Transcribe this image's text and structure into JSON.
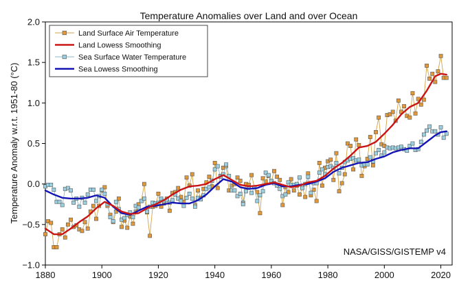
{
  "chart_data": {
    "type": "line",
    "title": "Temperature Anomalies over Land and over Ocean",
    "xlabel": "",
    "ylabel": "Temperature Anomaly w.r.t. 1951-80 (°C)",
    "xlim": [
      1880,
      2024
    ],
    "ylim": [
      -1.0,
      2.0
    ],
    "x_ticks": [
      "1880",
      "1900",
      "1920",
      "1940",
      "1960",
      "1980",
      "2000",
      "2020"
    ],
    "y_ticks": [
      "−1.0",
      "−0.5",
      "0.0",
      "0.5",
      "1.0",
      "1.5",
      "2.0"
    ],
    "annotation": "NASA/GISS/GISTEMP v4",
    "legend_position": "top-left",
    "grid": false,
    "series": [
      {
        "name": "Land Surface Air Temperature",
        "kind": "markers",
        "color": "#d4a244",
        "marker_fill": "#e0983a",
        "x": [
          1880,
          1881,
          1882,
          1883,
          1884,
          1885,
          1886,
          1887,
          1888,
          1889,
          1890,
          1891,
          1892,
          1893,
          1894,
          1895,
          1896,
          1897,
          1898,
          1899,
          1900,
          1901,
          1902,
          1903,
          1904,
          1905,
          1906,
          1907,
          1908,
          1909,
          1910,
          1911,
          1912,
          1913,
          1914,
          1915,
          1916,
          1917,
          1918,
          1919,
          1920,
          1921,
          1922,
          1923,
          1924,
          1925,
          1926,
          1927,
          1928,
          1929,
          1930,
          1931,
          1932,
          1933,
          1934,
          1935,
          1936,
          1937,
          1938,
          1939,
          1940,
          1941,
          1942,
          1943,
          1944,
          1945,
          1946,
          1947,
          1948,
          1949,
          1950,
          1951,
          1952,
          1953,
          1954,
          1955,
          1956,
          1957,
          1958,
          1959,
          1960,
          1961,
          1962,
          1963,
          1964,
          1965,
          1966,
          1967,
          1968,
          1969,
          1970,
          1971,
          1972,
          1973,
          1974,
          1975,
          1976,
          1977,
          1978,
          1979,
          1980,
          1981,
          1982,
          1983,
          1984,
          1985,
          1986,
          1987,
          1988,
          1989,
          1990,
          1991,
          1992,
          1993,
          1994,
          1995,
          1996,
          1997,
          1998,
          1999,
          2000,
          2001,
          2002,
          2003,
          2004,
          2005,
          2006,
          2007,
          2008,
          2009,
          2010,
          2011,
          2012,
          2013,
          2014,
          2015,
          2016,
          2017,
          2018,
          2019,
          2020,
          2021,
          2022
        ],
        "y": [
          -0.62,
          -0.46,
          -0.48,
          -0.78,
          -0.78,
          -0.62,
          -0.56,
          -0.66,
          -0.5,
          -0.44,
          -0.53,
          -0.51,
          -0.56,
          -0.58,
          -0.47,
          -0.55,
          -0.34,
          -0.27,
          -0.43,
          -0.27,
          -0.08,
          -0.04,
          -0.27,
          -0.38,
          -0.47,
          -0.34,
          -0.18,
          -0.53,
          -0.45,
          -0.54,
          -0.4,
          -0.49,
          -0.34,
          -0.25,
          -0.21,
          0.0,
          -0.35,
          -0.64,
          -0.28,
          -0.27,
          -0.12,
          -0.28,
          -0.24,
          -0.18,
          -0.33,
          -0.11,
          -0.1,
          -0.05,
          -0.16,
          -0.22,
          0.08,
          -0.02,
          0.12,
          -0.26,
          -0.08,
          -0.17,
          -0.06,
          0.02,
          0.09,
          -0.03,
          0.26,
          -0.05,
          0.1,
          0.2,
          0.22,
          -0.08,
          -0.02,
          0.0,
          0.08,
          0.04,
          -0.23,
          0.0,
          -0.01,
          0.11,
          -0.04,
          -0.1,
          -0.36,
          0.07,
          0.03,
          0.1,
          0.03,
          0.16,
          0.09,
          0.05,
          -0.26,
          -0.04,
          -0.1,
          0.06,
          -0.08,
          -0.02,
          -0.13,
          -0.05,
          -0.16,
          0.13,
          -0.14,
          -0.07,
          -0.21,
          0.26,
          -0.02,
          0.2,
          0.28,
          0.3,
          0.05,
          0.38,
          -0.09,
          0.01,
          0.12,
          0.5,
          0.47,
          0.18,
          0.55,
          0.48,
          0.1,
          0.22,
          0.31,
          0.58,
          0.23,
          0.64,
          0.82,
          0.49,
          0.47,
          0.85,
          0.86,
          0.89,
          0.78,
          1.03,
          0.89,
          0.96,
          0.84,
          0.82,
          1.12,
          0.87,
          1.05,
          0.98,
          1.04,
          1.46,
          1.3,
          1.36,
          1.26,
          1.39,
          1.58,
          1.31,
          1.31
        ]
      },
      {
        "name": "Land Lowess Smoothing",
        "kind": "line",
        "color": "#c81414",
        "x": [
          1880,
          1883,
          1886,
          1889,
          1892,
          1895,
          1898,
          1901,
          1904,
          1907,
          1910,
          1913,
          1916,
          1919,
          1922,
          1925,
          1928,
          1931,
          1934,
          1937,
          1940,
          1943,
          1946,
          1949,
          1952,
          1955,
          1958,
          1961,
          1964,
          1967,
          1970,
          1973,
          1976,
          1979,
          1982,
          1985,
          1988,
          1991,
          1994,
          1997,
          2000,
          2003,
          2006,
          2009,
          2012,
          2015,
          2018,
          2020,
          2022
        ],
        "y": [
          -0.55,
          -0.62,
          -0.62,
          -0.55,
          -0.47,
          -0.4,
          -0.3,
          -0.22,
          -0.27,
          -0.34,
          -0.37,
          -0.36,
          -0.3,
          -0.25,
          -0.2,
          -0.13,
          -0.07,
          -0.03,
          -0.02,
          0.0,
          0.06,
          0.11,
          0.05,
          -0.01,
          -0.03,
          -0.02,
          0.0,
          0.02,
          -0.01,
          -0.04,
          -0.02,
          0.02,
          0.04,
          0.1,
          0.19,
          0.26,
          0.35,
          0.45,
          0.47,
          0.52,
          0.62,
          0.73,
          0.86,
          0.95,
          1.0,
          1.15,
          1.33,
          1.36,
          1.35
        ]
      },
      {
        "name": "Sea Surface Water Temperature",
        "kind": "markers",
        "color": "#8ab8c8",
        "marker_fill": "#9ccfdf",
        "x": [
          1880,
          1881,
          1882,
          1883,
          1884,
          1885,
          1886,
          1887,
          1888,
          1889,
          1890,
          1891,
          1892,
          1893,
          1894,
          1895,
          1896,
          1897,
          1898,
          1899,
          1900,
          1901,
          1902,
          1903,
          1904,
          1905,
          1906,
          1907,
          1908,
          1909,
          1910,
          1911,
          1912,
          1913,
          1914,
          1915,
          1916,
          1917,
          1918,
          1919,
          1920,
          1921,
          1922,
          1923,
          1924,
          1925,
          1926,
          1927,
          1928,
          1929,
          1930,
          1931,
          1932,
          1933,
          1934,
          1935,
          1936,
          1937,
          1938,
          1939,
          1940,
          1941,
          1942,
          1943,
          1944,
          1945,
          1946,
          1947,
          1948,
          1949,
          1950,
          1951,
          1952,
          1953,
          1954,
          1955,
          1956,
          1957,
          1958,
          1959,
          1960,
          1961,
          1962,
          1963,
          1964,
          1965,
          1966,
          1967,
          1968,
          1969,
          1970,
          1971,
          1972,
          1973,
          1974,
          1975,
          1976,
          1977,
          1978,
          1979,
          1980,
          1981,
          1982,
          1983,
          1984,
          1985,
          1986,
          1987,
          1988,
          1989,
          1990,
          1991,
          1992,
          1993,
          1994,
          1995,
          1996,
          1997,
          1998,
          1999,
          2000,
          2001,
          2002,
          2003,
          2004,
          2005,
          2006,
          2007,
          2008,
          2009,
          2010,
          2011,
          2012,
          2013,
          2014,
          2015,
          2016,
          2017,
          2018,
          2019,
          2020,
          2021,
          2022
        ],
        "y": [
          -0.03,
          -0.01,
          -0.01,
          -0.07,
          -0.22,
          -0.22,
          -0.26,
          -0.06,
          -0.05,
          -0.08,
          -0.23,
          -0.18,
          -0.28,
          -0.17,
          -0.23,
          -0.13,
          -0.07,
          -0.07,
          -0.21,
          -0.15,
          -0.07,
          -0.12,
          -0.25,
          -0.41,
          -0.46,
          -0.22,
          -0.31,
          -0.44,
          -0.42,
          -0.38,
          -0.35,
          -0.41,
          -0.27,
          -0.29,
          -0.21,
          -0.18,
          -0.34,
          -0.28,
          -0.23,
          -0.24,
          -0.23,
          -0.18,
          -0.21,
          -0.2,
          -0.23,
          -0.2,
          -0.13,
          -0.18,
          -0.21,
          -0.27,
          -0.17,
          -0.12,
          -0.18,
          -0.28,
          -0.17,
          -0.19,
          -0.14,
          -0.06,
          -0.04,
          0.04,
          0.18,
          0.22,
          0.09,
          0.12,
          0.24,
          0.1,
          -0.08,
          -0.08,
          -0.15,
          -0.12,
          -0.25,
          -0.09,
          -0.04,
          -0.11,
          -0.04,
          -0.21,
          -0.14,
          -0.09,
          0.14,
          0.11,
          0.04,
          0.01,
          -0.02,
          -0.06,
          -0.15,
          -0.13,
          0.02,
          -0.01,
          -0.01,
          0.0,
          0.08,
          -0.05,
          0.0,
          0.09,
          -0.11,
          0.01,
          0.01,
          0.14,
          0.18,
          0.12,
          0.21,
          0.22,
          0.2,
          0.26,
          0.13,
          0.2,
          0.27,
          0.29,
          0.31,
          0.32,
          0.29,
          0.3,
          0.23,
          0.24,
          0.24,
          0.33,
          0.28,
          0.38,
          0.42,
          0.35,
          0.39,
          0.45,
          0.44,
          0.45,
          0.44,
          0.45,
          0.46,
          0.43,
          0.41,
          0.47,
          0.5,
          0.42,
          0.43,
          0.52,
          0.61,
          0.66,
          0.71,
          0.65,
          0.65,
          0.61,
          0.7,
          0.57,
          0.62
        ]
      },
      {
        "name": "Sea Lowess Smoothing",
        "kind": "line",
        "color": "#1414b4",
        "x": [
          1880,
          1883,
          1886,
          1889,
          1892,
          1895,
          1898,
          1901,
          1904,
          1907,
          1910,
          1913,
          1916,
          1919,
          1922,
          1925,
          1928,
          1931,
          1934,
          1937,
          1940,
          1943,
          1946,
          1949,
          1952,
          1955,
          1958,
          1961,
          1964,
          1967,
          1970,
          1973,
          1976,
          1979,
          1982,
          1985,
          1988,
          1991,
          1994,
          1997,
          2000,
          2003,
          2006,
          2009,
          2012,
          2015,
          2018,
          2020,
          2022
        ],
        "y": [
          -0.08,
          -0.13,
          -0.17,
          -0.18,
          -0.18,
          -0.17,
          -0.14,
          -0.17,
          -0.28,
          -0.36,
          -0.38,
          -0.33,
          -0.28,
          -0.27,
          -0.25,
          -0.23,
          -0.24,
          -0.24,
          -0.2,
          -0.13,
          -0.03,
          0.06,
          0.03,
          -0.04,
          -0.06,
          -0.05,
          -0.01,
          0.01,
          -0.03,
          -0.03,
          -0.01,
          0.0,
          0.03,
          0.07,
          0.15,
          0.2,
          0.23,
          0.26,
          0.27,
          0.31,
          0.34,
          0.39,
          0.42,
          0.44,
          0.44,
          0.52,
          0.6,
          0.64,
          0.65
        ]
      }
    ]
  }
}
